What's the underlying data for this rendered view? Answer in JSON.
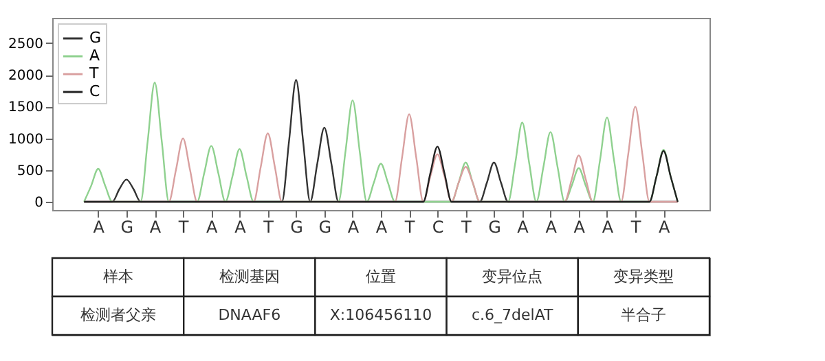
{
  "chart_data": {
    "type": "line",
    "line_style": "solid",
    "grid": false,
    "legend": "top left",
    "ylim": [
      -130,
      2900
    ],
    "yticks": [
      0,
      500,
      1000,
      1500,
      2000,
      2500
    ],
    "categories": [
      null,
      null,
      "A",
      null,
      null,
      null,
      "G",
      null,
      null,
      null,
      "A",
      null,
      null,
      null,
      "T",
      null,
      null,
      null,
      "A",
      null,
      null,
      null,
      "A",
      null,
      null,
      null,
      "T",
      null,
      null,
      null,
      "G",
      null,
      null,
      null,
      "G",
      null,
      null,
      null,
      "A",
      null,
      null,
      null,
      "A",
      null,
      null,
      null,
      "T",
      null,
      null,
      null,
      "C",
      null,
      null,
      null,
      "T",
      null,
      null,
      null,
      "G",
      null,
      null,
      null,
      "A",
      null,
      null,
      null,
      "A",
      null,
      null,
      null,
      "A",
      null,
      null,
      null,
      "A",
      null,
      null,
      null,
      "T",
      null,
      null,
      null,
      "A",
      null,
      null
    ],
    "series": [
      {
        "name": "G",
        "color": "#333333",
        "values": [
          0,
          0,
          0,
          0,
          0,
          200,
          350,
          200,
          0,
          0,
          0,
          0,
          0,
          0,
          0,
          0,
          0,
          0,
          0,
          0,
          0,
          0,
          0,
          0,
          0,
          0,
          0,
          0,
          0,
          950,
          1920,
          950,
          0,
          600,
          1170,
          600,
          0,
          0,
          0,
          0,
          0,
          0,
          0,
          0,
          0,
          0,
          0,
          0,
          0,
          0,
          0,
          0,
          0,
          0,
          0,
          0,
          0,
          300,
          620,
          300,
          0,
          0,
          0,
          0,
          0,
          0,
          0,
          0,
          0,
          0,
          0,
          0,
          0,
          0,
          0,
          0,
          0,
          0,
          0,
          0,
          0,
          0,
          0,
          0,
          0
        ]
      },
      {
        "name": "A",
        "color": "#8fd18f",
        "values": [
          0,
          250,
          520,
          250,
          0,
          0,
          0,
          0,
          0,
          950,
          1880,
          950,
          0,
          0,
          0,
          0,
          0,
          450,
          880,
          450,
          0,
          400,
          830,
          400,
          0,
          0,
          0,
          0,
          0,
          0,
          0,
          0,
          0,
          0,
          0,
          0,
          0,
          800,
          1600,
          800,
          0,
          300,
          600,
          300,
          0,
          0,
          0,
          0,
          0,
          0,
          0,
          0,
          0,
          300,
          620,
          300,
          0,
          0,
          0,
          0,
          0,
          600,
          1250,
          600,
          0,
          550,
          1100,
          550,
          0,
          250,
          530,
          250,
          0,
          650,
          1330,
          650,
          0,
          0,
          0,
          0,
          0,
          400,
          820,
          400,
          0
        ]
      },
      {
        "name": "T",
        "color": "#d9a0a0",
        "values": [
          0,
          0,
          0,
          0,
          0,
          0,
          0,
          0,
          0,
          0,
          0,
          0,
          0,
          500,
          1000,
          500,
          0,
          0,
          0,
          0,
          0,
          0,
          0,
          0,
          0,
          550,
          1080,
          550,
          0,
          0,
          0,
          0,
          0,
          0,
          0,
          0,
          0,
          0,
          0,
          0,
          0,
          0,
          0,
          0,
          0,
          700,
          1380,
          700,
          0,
          400,
          750,
          400,
          0,
          300,
          550,
          300,
          0,
          0,
          0,
          0,
          0,
          0,
          0,
          0,
          0,
          0,
          0,
          0,
          0,
          350,
          730,
          350,
          0,
          0,
          0,
          0,
          0,
          750,
          1500,
          750,
          0,
          0,
          0,
          0,
          0
        ]
      },
      {
        "name": "C",
        "color": "#222222",
        "values": [
          0,
          0,
          0,
          0,
          0,
          0,
          0,
          0,
          0,
          0,
          0,
          0,
          0,
          0,
          0,
          0,
          0,
          0,
          0,
          0,
          0,
          0,
          0,
          0,
          0,
          0,
          0,
          0,
          0,
          0,
          0,
          0,
          0,
          0,
          0,
          0,
          0,
          0,
          0,
          0,
          0,
          0,
          0,
          0,
          0,
          0,
          0,
          0,
          0,
          450,
          870,
          450,
          0,
          0,
          0,
          0,
          0,
          0,
          0,
          0,
          0,
          0,
          0,
          0,
          0,
          0,
          0,
          0,
          0,
          0,
          0,
          0,
          0,
          0,
          0,
          0,
          0,
          0,
          0,
          0,
          0,
          400,
          800,
          400,
          0
        ]
      }
    ],
    "annotations": [
      "样本",
      "检测基因",
      "位置",
      "变异位点",
      "变异类型",
      "检测者父亲",
      "DNAAF6",
      "X:106456110",
      "c.6_7delAT",
      "半合子"
    ]
  }
}
